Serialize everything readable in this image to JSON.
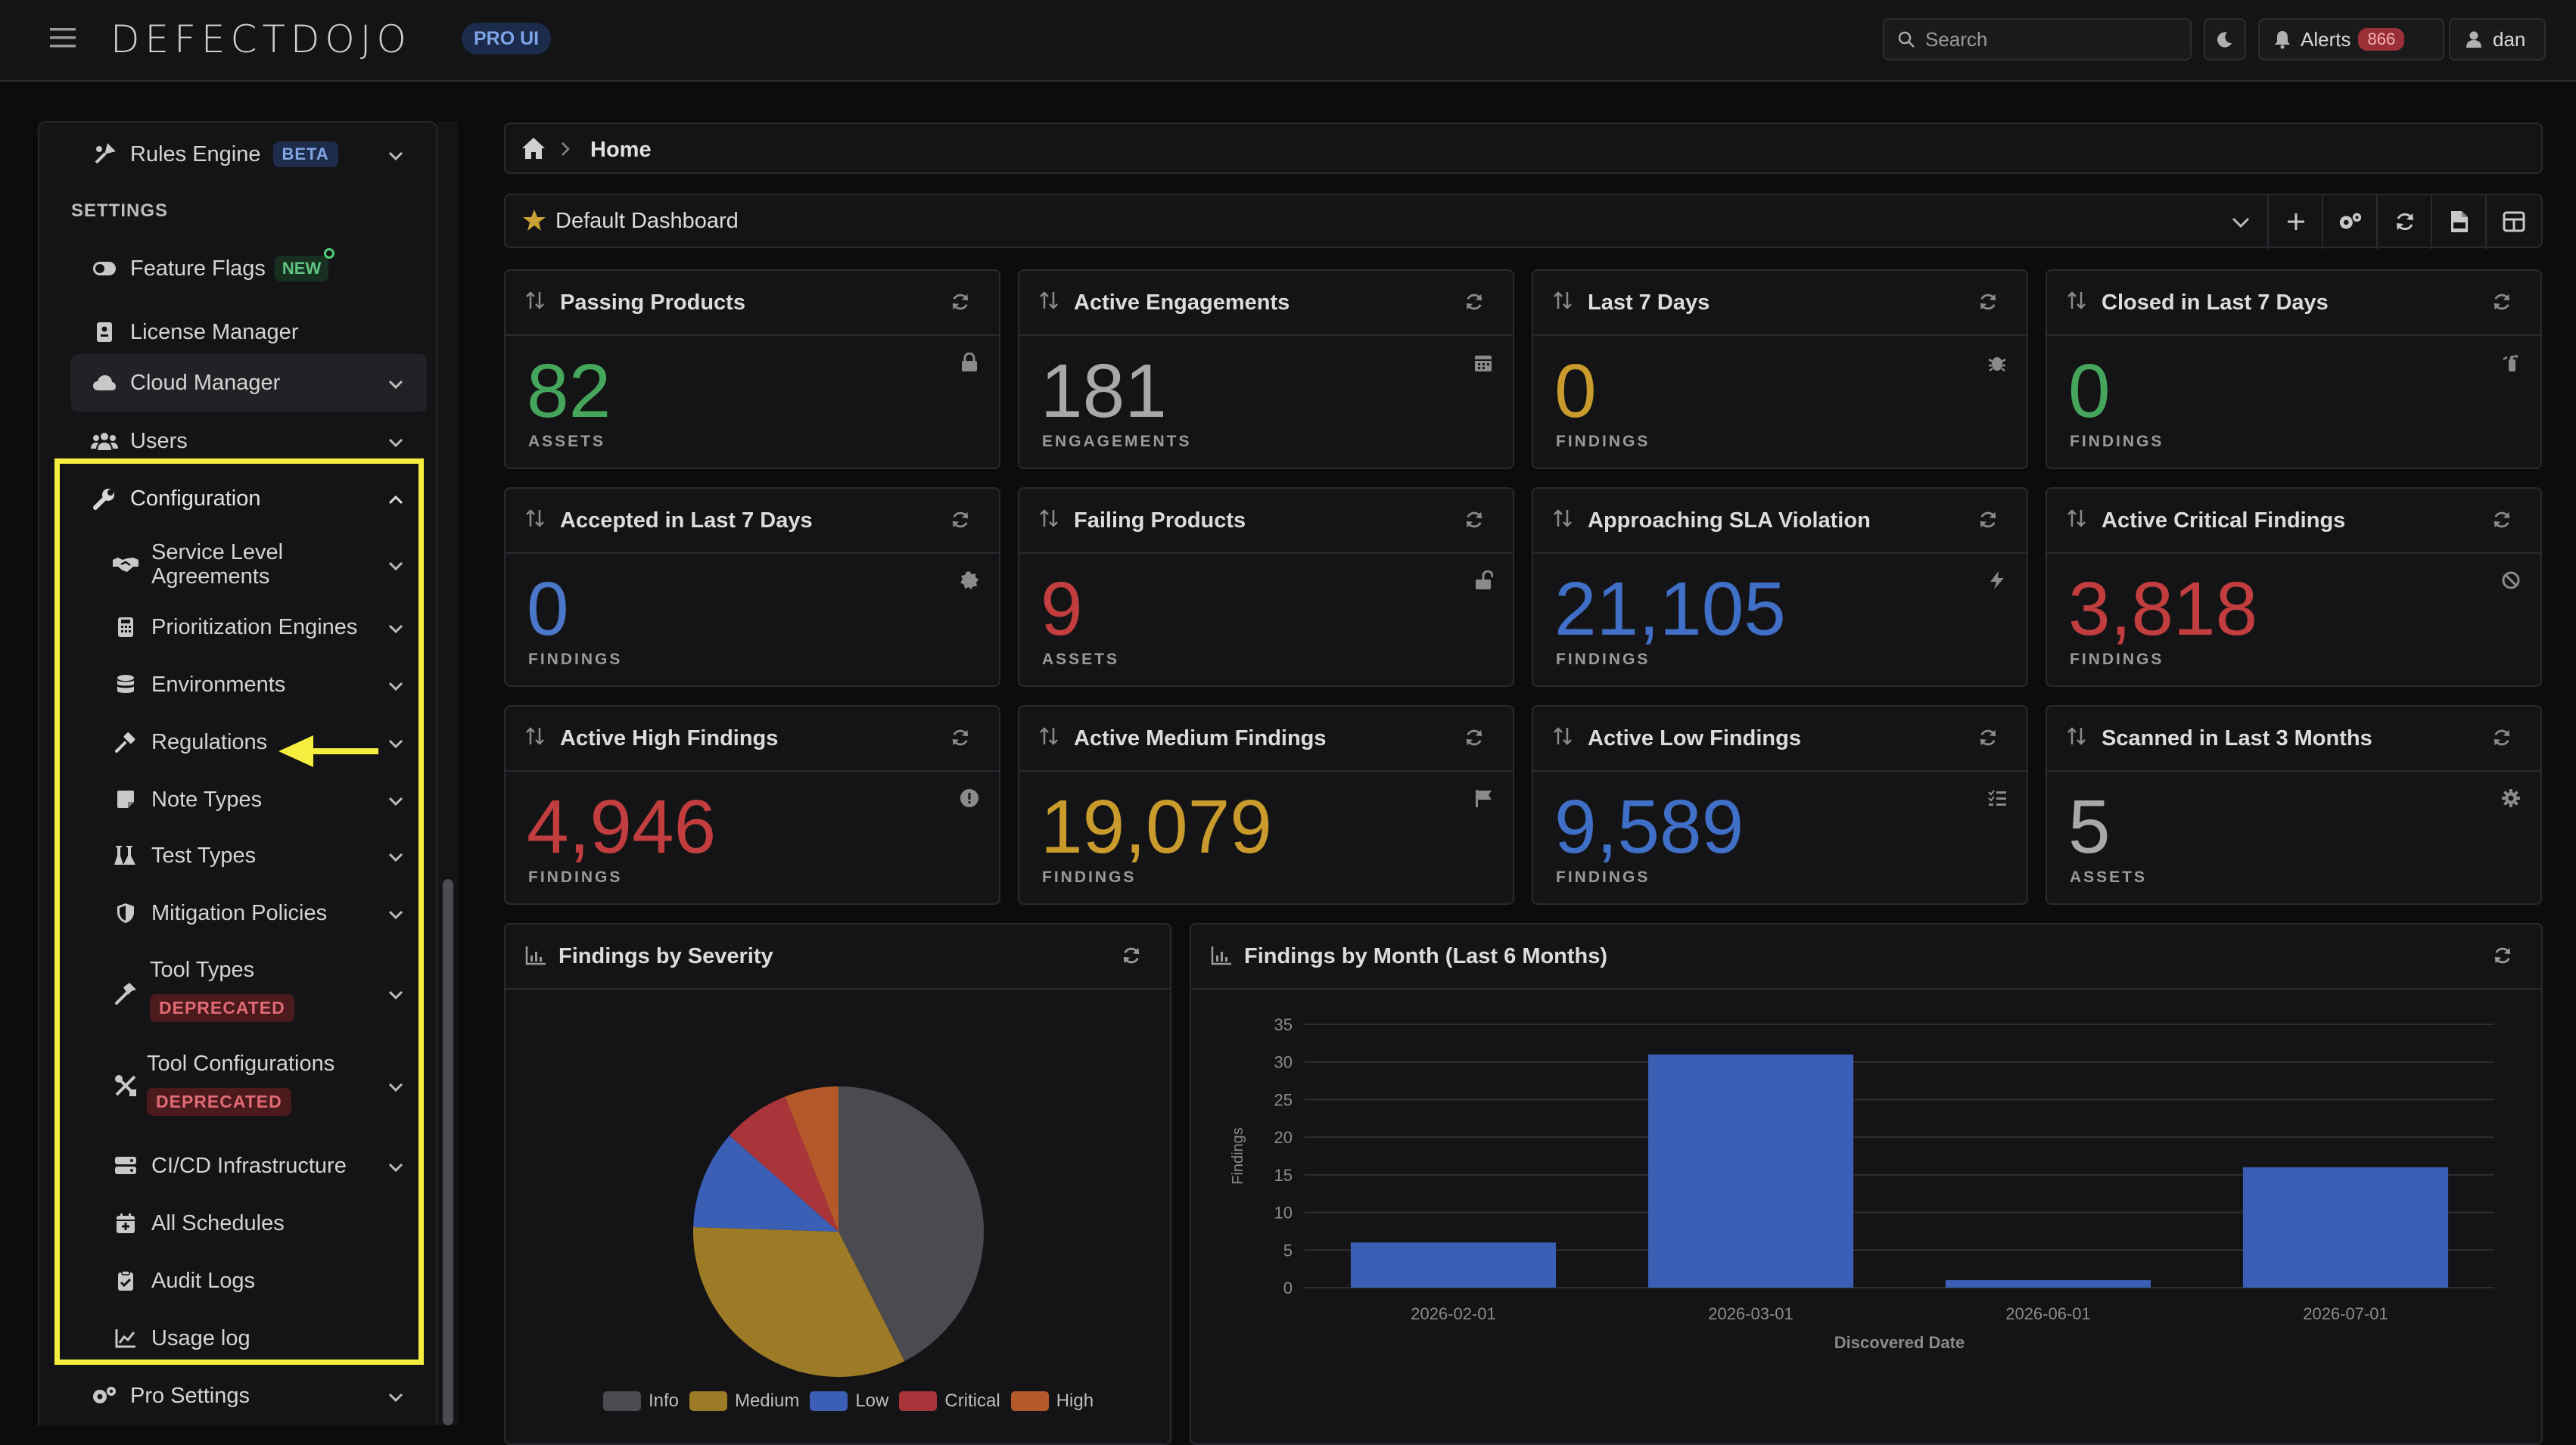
{
  "header": {
    "logo_text": "DEFECTDOJO",
    "pro_badge": "PRO UI",
    "search_placeholder": "Search",
    "alerts_label": "Alerts",
    "alerts_count": "866",
    "user_name": "dan"
  },
  "sidebar": {
    "rules_engine": {
      "label": "Rules Engine",
      "badge": "BETA"
    },
    "settings_header": "SETTINGS",
    "feature_flags": {
      "label": "Feature Flags",
      "badge": "NEW"
    },
    "license_manager": "License Manager",
    "cloud_manager": "Cloud Manager",
    "users": "Users",
    "configuration": "Configuration",
    "config_items": {
      "sla_line1": "Service Level",
      "sla_line2": "Agreements",
      "prioritization": "Prioritization Engines",
      "environments": "Environments",
      "regulations": "Regulations",
      "note_types": "Note Types",
      "test_types": "Test Types",
      "mitigation": "Mitigation Policies",
      "tool_types": "Tool Types",
      "tool_types_badge": "DEPRECATED",
      "tool_configs": "Tool Configurations",
      "tool_configs_badge": "DEPRECATED",
      "cicd": "CI/CD Infrastructure",
      "schedules": "All Schedules",
      "audit_logs": "Audit Logs",
      "usage_log": "Usage log"
    },
    "pro_settings": "Pro Settings"
  },
  "breadcrumb": {
    "current": "Home"
  },
  "dashboard_selector": {
    "value": "Default Dashboard"
  },
  "cards": [
    {
      "title": "Passing Products",
      "value": "82",
      "unit": "ASSETS",
      "color": "#45a55a",
      "icon": "lock-icon"
    },
    {
      "title": "Active Engagements",
      "value": "181",
      "unit": "ENGAGEMENTS",
      "color": "#a8a8a8",
      "icon": "calendar-icon"
    },
    {
      "title": "Last 7 Days",
      "value": "0",
      "unit": "FINDINGS",
      "color": "#c99a2c",
      "icon": "bug-icon"
    },
    {
      "title": "Closed in Last 7 Days",
      "value": "0",
      "unit": "FINDINGS",
      "color": "#45a55a",
      "icon": "fire-extinguisher-icon"
    },
    {
      "title": "Accepted in Last 7 Days",
      "value": "0",
      "unit": "FINDINGS",
      "color": "#4a77c9",
      "icon": "badge-icon"
    },
    {
      "title": "Failing Products",
      "value": "9",
      "unit": "ASSETS",
      "color": "#c23d3d",
      "icon": "unlock-icon"
    },
    {
      "title": "Approaching SLA Violation",
      "value": "21,105",
      "unit": "FINDINGS",
      "color": "#3f6fc7",
      "icon": "bolt-icon"
    },
    {
      "title": "Active Critical Findings",
      "value": "3,818",
      "unit": "FINDINGS",
      "color": "#c23d3d",
      "icon": "ban-icon"
    },
    {
      "title": "Active High Findings",
      "value": "4,946",
      "unit": "FINDINGS",
      "color": "#c23d3d",
      "icon": "exclamation-circle-icon"
    },
    {
      "title": "Active Medium Findings",
      "value": "19,079",
      "unit": "FINDINGS",
      "color": "#c99a2c",
      "icon": "flag-icon"
    },
    {
      "title": "Active Low Findings",
      "value": "9,589",
      "unit": "FINDINGS",
      "color": "#3f6fc7",
      "icon": "list-check-icon"
    },
    {
      "title": "Scanned in Last 3 Months",
      "value": "5",
      "unit": "ASSETS",
      "color": "#a8a8a8",
      "icon": "gear-icon"
    }
  ],
  "chart_data": [
    {
      "type": "pie",
      "title": "Findings by Severity",
      "categories": [
        "Info",
        "Medium",
        "Low",
        "Critical",
        "High"
      ],
      "values": [
        42.5,
        33,
        11,
        7.5,
        6
      ],
      "colors": [
        "#4a4a50",
        "#9d7a26",
        "#3a5fb5",
        "#a9353b",
        "#b5582a"
      ],
      "legend": "bottom"
    },
    {
      "type": "bar",
      "title": "Findings by Month (Last 6 Months)",
      "categories": [
        "2026-02-01",
        "2026-03-01",
        "2026-06-01",
        "2026-07-01"
      ],
      "values": [
        6,
        31,
        1,
        16
      ],
      "color": "#3a5fb5",
      "xlabel": "Discovered Date",
      "ylabel": "Findings",
      "ylim": [
        0,
        35
      ],
      "yticks": [
        0,
        5,
        10,
        15,
        20,
        25,
        30,
        35
      ],
      "grid": true
    }
  ]
}
